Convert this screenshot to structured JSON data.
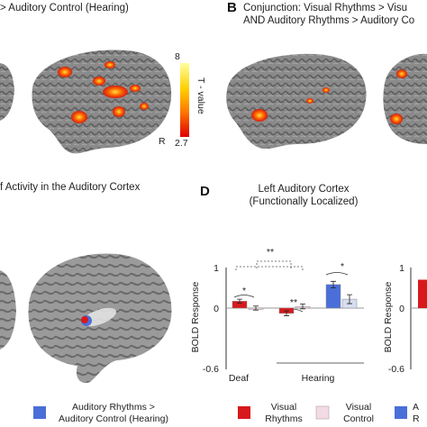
{
  "panel_a": {
    "title": "> Auditory Control (Hearing)"
  },
  "colorbar": {
    "max_label": "8",
    "min_label": "2.7",
    "axis_title": "T - value",
    "hemisphere": "R",
    "colors": [
      "#ffffa0",
      "#ffd000",
      "#ff7a00",
      "#ff2000",
      "#e00000"
    ]
  },
  "panel_b": {
    "letter": "B",
    "line1": "Conjunction: Visual Rhythms > Visu",
    "line2": "AND Auditory Rhythms > Auditory Co"
  },
  "panel_c": {
    "title": "f Activity in the Auditory Cortex"
  },
  "panel_d": {
    "letter": "D",
    "title_line1": "Left Auditory Cortex",
    "title_line2": "(Functionally Localized)"
  },
  "chart_data": [
    {
      "type": "bar",
      "title": "Left Auditory Cortex (Functionally Localized)",
      "ylabel": "BOLD Response",
      "ylim": [
        -0.6,
        1
      ],
      "yticks": [
        "1",
        "0",
        "-0.6"
      ],
      "groups": [
        "Deaf",
        "Hearing"
      ],
      "group_labels": {
        "deaf": "Deaf",
        "hearing": "Hearing"
      },
      "series": [
        {
          "name": "Visual Rhythms",
          "color": "#d7191c",
          "values": [
            0.17,
            -0.13,
            null
          ]
        },
        {
          "name": "Visual Control",
          "color": "#f3dbe6",
          "values": [
            0.0,
            0.04,
            null
          ]
        },
        {
          "name": "Auditory Rhythms",
          "color": "#4b6fd8",
          "values": [
            null,
            null,
            0.58
          ]
        },
        {
          "name": "Auditory Control",
          "color": "#d8def2",
          "values": [
            null,
            null,
            0.22
          ]
        }
      ],
      "bars": [
        {
          "value": 0.17,
          "error": 0.05,
          "color": "#d7191c"
        },
        {
          "value": 0.0,
          "error": 0.05,
          "color": "#f3dbe6"
        },
        {
          "value": -0.13,
          "error": 0.06,
          "color": "#d7191c"
        },
        {
          "value": 0.04,
          "error": 0.06,
          "color": "#f3dbe6"
        },
        {
          "value": 0.58,
          "error": 0.08,
          "color": "#4b6fd8"
        },
        {
          "value": 0.22,
          "error": 0.11,
          "color": "#d8def2"
        }
      ],
      "significance": [
        "*",
        "**",
        "**",
        "*"
      ]
    },
    {
      "type": "bar",
      "ylabel": "BOLD Response",
      "yticks": [
        "1",
        "0",
        "-0.6"
      ],
      "ylim": [
        -0.6,
        1
      ],
      "bars": [
        {
          "value": 0.7,
          "color": "#d7191c"
        }
      ]
    }
  ],
  "legend": {
    "auditory_line1": "Auditory Rhythms >",
    "auditory_line2": "Auditory Control (Hearing)",
    "auditory_color": "#4b6fd8",
    "visual_rhythms_line1": "Visual",
    "visual_rhythms_line2": "Rhythms",
    "visual_rhythms_color": "#d7191c",
    "visual_control_line1": "Visual",
    "visual_control_line2": "Control",
    "visual_control_color": "#f3dbe6",
    "auditory_cut_line1": "A",
    "auditory_cut_line2": "R",
    "auditory_cut_color": "#4b6fd8"
  }
}
